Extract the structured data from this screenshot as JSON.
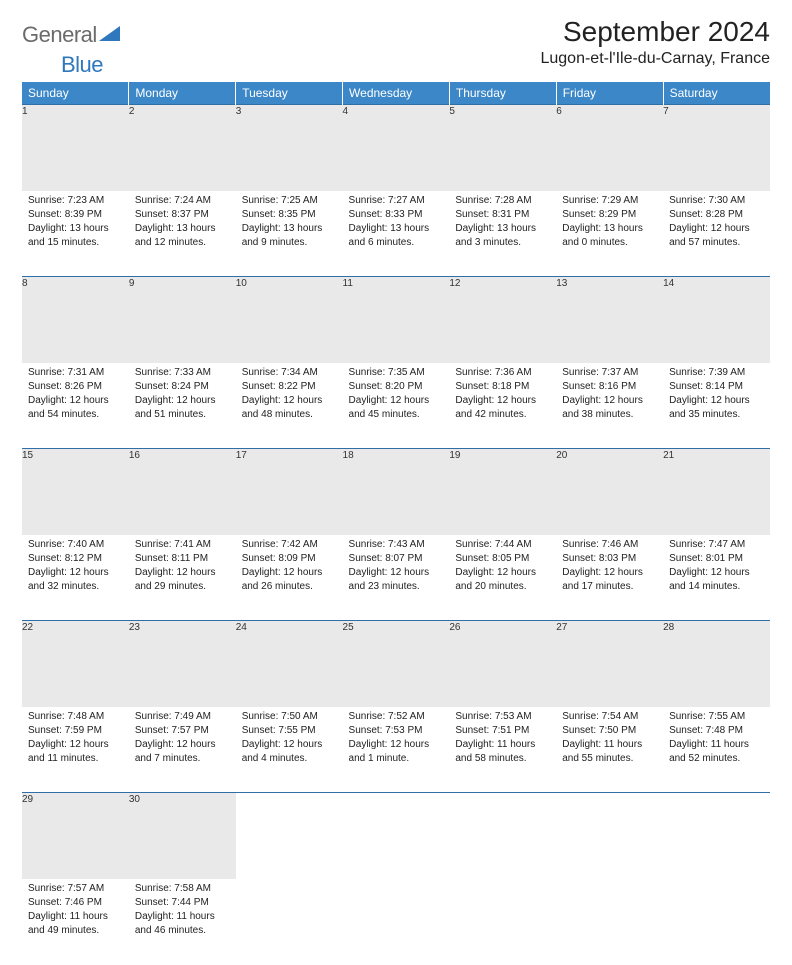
{
  "logo": {
    "general": "General",
    "blue": "Blue"
  },
  "header": {
    "month_title": "September 2024",
    "location": "Lugon-et-l'Ile-du-Carnay, France"
  },
  "colors": {
    "header_bg": "#3b87c8",
    "header_text": "#ffffff",
    "daynum_bg": "#e9e9e9",
    "rule": "#2f6ea7",
    "logo_gray": "#6b6b6b",
    "logo_blue": "#2f78bd"
  },
  "day_labels": [
    "Sunday",
    "Monday",
    "Tuesday",
    "Wednesday",
    "Thursday",
    "Friday",
    "Saturday"
  ],
  "weeks": [
    [
      {
        "n": "1",
        "sunrise": "Sunrise: 7:23 AM",
        "sunset": "Sunset: 8:39 PM",
        "day1": "Daylight: 13 hours",
        "day2": "and 15 minutes."
      },
      {
        "n": "2",
        "sunrise": "Sunrise: 7:24 AM",
        "sunset": "Sunset: 8:37 PM",
        "day1": "Daylight: 13 hours",
        "day2": "and 12 minutes."
      },
      {
        "n": "3",
        "sunrise": "Sunrise: 7:25 AM",
        "sunset": "Sunset: 8:35 PM",
        "day1": "Daylight: 13 hours",
        "day2": "and 9 minutes."
      },
      {
        "n": "4",
        "sunrise": "Sunrise: 7:27 AM",
        "sunset": "Sunset: 8:33 PM",
        "day1": "Daylight: 13 hours",
        "day2": "and 6 minutes."
      },
      {
        "n": "5",
        "sunrise": "Sunrise: 7:28 AM",
        "sunset": "Sunset: 8:31 PM",
        "day1": "Daylight: 13 hours",
        "day2": "and 3 minutes."
      },
      {
        "n": "6",
        "sunrise": "Sunrise: 7:29 AM",
        "sunset": "Sunset: 8:29 PM",
        "day1": "Daylight: 13 hours",
        "day2": "and 0 minutes."
      },
      {
        "n": "7",
        "sunrise": "Sunrise: 7:30 AM",
        "sunset": "Sunset: 8:28 PM",
        "day1": "Daylight: 12 hours",
        "day2": "and 57 minutes."
      }
    ],
    [
      {
        "n": "8",
        "sunrise": "Sunrise: 7:31 AM",
        "sunset": "Sunset: 8:26 PM",
        "day1": "Daylight: 12 hours",
        "day2": "and 54 minutes."
      },
      {
        "n": "9",
        "sunrise": "Sunrise: 7:33 AM",
        "sunset": "Sunset: 8:24 PM",
        "day1": "Daylight: 12 hours",
        "day2": "and 51 minutes."
      },
      {
        "n": "10",
        "sunrise": "Sunrise: 7:34 AM",
        "sunset": "Sunset: 8:22 PM",
        "day1": "Daylight: 12 hours",
        "day2": "and 48 minutes."
      },
      {
        "n": "11",
        "sunrise": "Sunrise: 7:35 AM",
        "sunset": "Sunset: 8:20 PM",
        "day1": "Daylight: 12 hours",
        "day2": "and 45 minutes."
      },
      {
        "n": "12",
        "sunrise": "Sunrise: 7:36 AM",
        "sunset": "Sunset: 8:18 PM",
        "day1": "Daylight: 12 hours",
        "day2": "and 42 minutes."
      },
      {
        "n": "13",
        "sunrise": "Sunrise: 7:37 AM",
        "sunset": "Sunset: 8:16 PM",
        "day1": "Daylight: 12 hours",
        "day2": "and 38 minutes."
      },
      {
        "n": "14",
        "sunrise": "Sunrise: 7:39 AM",
        "sunset": "Sunset: 8:14 PM",
        "day1": "Daylight: 12 hours",
        "day2": "and 35 minutes."
      }
    ],
    [
      {
        "n": "15",
        "sunrise": "Sunrise: 7:40 AM",
        "sunset": "Sunset: 8:12 PM",
        "day1": "Daylight: 12 hours",
        "day2": "and 32 minutes."
      },
      {
        "n": "16",
        "sunrise": "Sunrise: 7:41 AM",
        "sunset": "Sunset: 8:11 PM",
        "day1": "Daylight: 12 hours",
        "day2": "and 29 minutes."
      },
      {
        "n": "17",
        "sunrise": "Sunrise: 7:42 AM",
        "sunset": "Sunset: 8:09 PM",
        "day1": "Daylight: 12 hours",
        "day2": "and 26 minutes."
      },
      {
        "n": "18",
        "sunrise": "Sunrise: 7:43 AM",
        "sunset": "Sunset: 8:07 PM",
        "day1": "Daylight: 12 hours",
        "day2": "and 23 minutes."
      },
      {
        "n": "19",
        "sunrise": "Sunrise: 7:44 AM",
        "sunset": "Sunset: 8:05 PM",
        "day1": "Daylight: 12 hours",
        "day2": "and 20 minutes."
      },
      {
        "n": "20",
        "sunrise": "Sunrise: 7:46 AM",
        "sunset": "Sunset: 8:03 PM",
        "day1": "Daylight: 12 hours",
        "day2": "and 17 minutes."
      },
      {
        "n": "21",
        "sunrise": "Sunrise: 7:47 AM",
        "sunset": "Sunset: 8:01 PM",
        "day1": "Daylight: 12 hours",
        "day2": "and 14 minutes."
      }
    ],
    [
      {
        "n": "22",
        "sunrise": "Sunrise: 7:48 AM",
        "sunset": "Sunset: 7:59 PM",
        "day1": "Daylight: 12 hours",
        "day2": "and 11 minutes."
      },
      {
        "n": "23",
        "sunrise": "Sunrise: 7:49 AM",
        "sunset": "Sunset: 7:57 PM",
        "day1": "Daylight: 12 hours",
        "day2": "and 7 minutes."
      },
      {
        "n": "24",
        "sunrise": "Sunrise: 7:50 AM",
        "sunset": "Sunset: 7:55 PM",
        "day1": "Daylight: 12 hours",
        "day2": "and 4 minutes."
      },
      {
        "n": "25",
        "sunrise": "Sunrise: 7:52 AM",
        "sunset": "Sunset: 7:53 PM",
        "day1": "Daylight: 12 hours",
        "day2": "and 1 minute."
      },
      {
        "n": "26",
        "sunrise": "Sunrise: 7:53 AM",
        "sunset": "Sunset: 7:51 PM",
        "day1": "Daylight: 11 hours",
        "day2": "and 58 minutes."
      },
      {
        "n": "27",
        "sunrise": "Sunrise: 7:54 AM",
        "sunset": "Sunset: 7:50 PM",
        "day1": "Daylight: 11 hours",
        "day2": "and 55 minutes."
      },
      {
        "n": "28",
        "sunrise": "Sunrise: 7:55 AM",
        "sunset": "Sunset: 7:48 PM",
        "day1": "Daylight: 11 hours",
        "day2": "and 52 minutes."
      }
    ],
    [
      {
        "n": "29",
        "sunrise": "Sunrise: 7:57 AM",
        "sunset": "Sunset: 7:46 PM",
        "day1": "Daylight: 11 hours",
        "day2": "and 49 minutes."
      },
      {
        "n": "30",
        "sunrise": "Sunrise: 7:58 AM",
        "sunset": "Sunset: 7:44 PM",
        "day1": "Daylight: 11 hours",
        "day2": "and 46 minutes."
      },
      null,
      null,
      null,
      null,
      null
    ]
  ]
}
